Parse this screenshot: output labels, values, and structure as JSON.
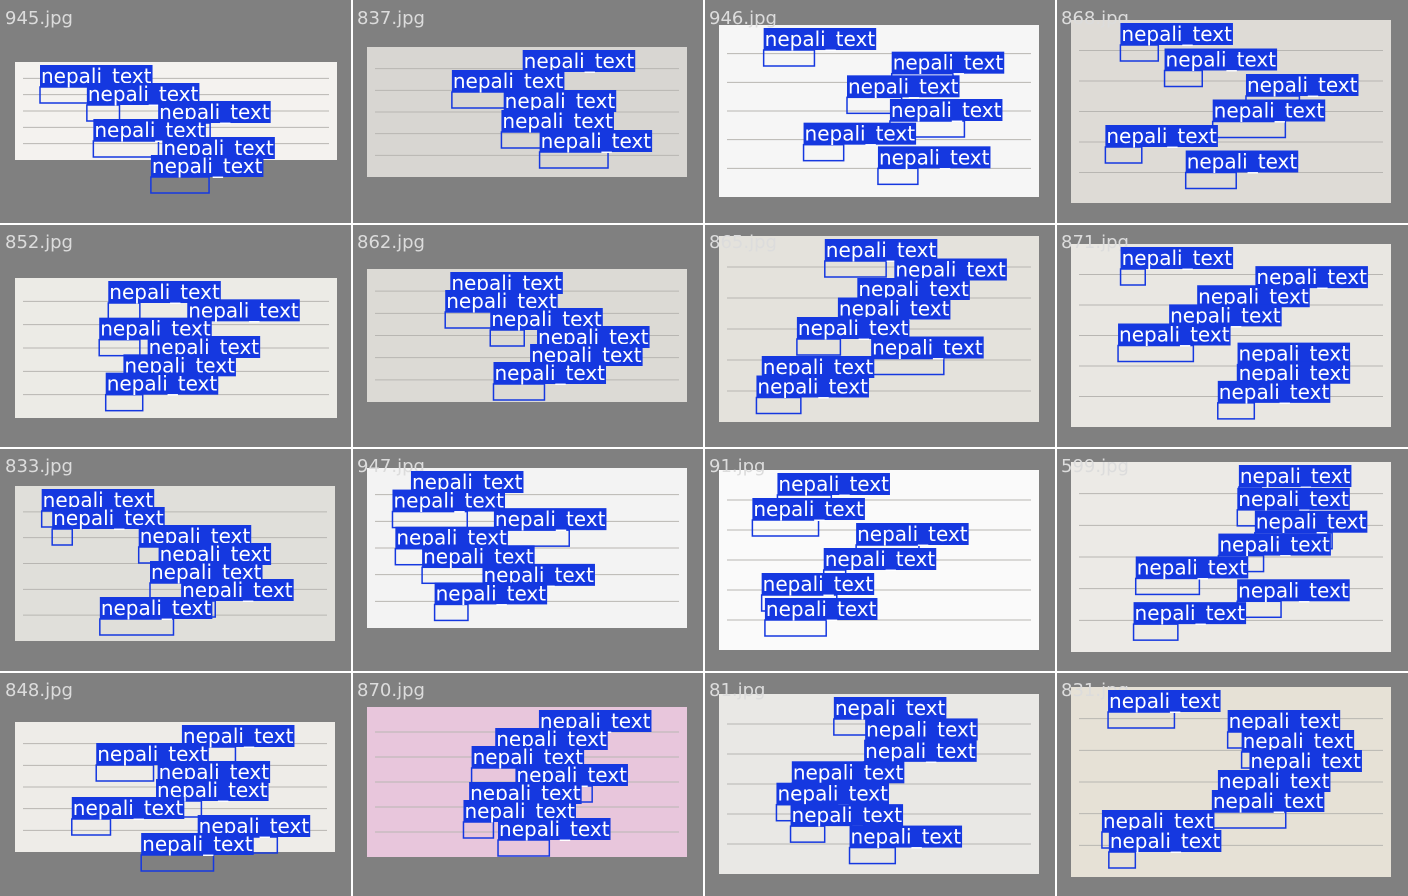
{
  "tiles": [
    {
      "filename": "945.jpg",
      "labels": [
        "nepali_text",
        "nepali_text",
        "nepali_text",
        "nepali_text",
        "nepali_text",
        "nepali_text"
      ]
    },
    {
      "filename": "837.jpg",
      "labels": [
        "nepali_text",
        "nepali_text",
        "nepali_text",
        "nepali_text",
        "nepali_text"
      ]
    },
    {
      "filename": "946.jpg",
      "labels": [
        "nepali_text",
        "nepali_text",
        "nepali_text",
        "nepali_text",
        "nepali_text",
        "nepali_text"
      ]
    },
    {
      "filename": "868.jpg",
      "labels": [
        "nepali_text",
        "nepali_text",
        "nepali_text",
        "nepali_text",
        "nepali_text",
        "nepali_text"
      ]
    },
    {
      "filename": "852.jpg",
      "labels": [
        "nepali_text",
        "nepali_text",
        "nepali_text",
        "nepali_text",
        "nepali_text",
        "nepali_text"
      ]
    },
    {
      "filename": "862.jpg",
      "labels": [
        "nepali_text",
        "nepali_text",
        "nepali_text",
        "nepali_text",
        "nepali_text",
        "nepali_text"
      ]
    },
    {
      "filename": "865.jpg",
      "labels": [
        "nepali_text",
        "nepali_text",
        "nepali_text",
        "nepali_text",
        "nepali_text",
        "nepali_text",
        "nepali_text",
        "nepali_text"
      ]
    },
    {
      "filename": "871.jpg",
      "labels": [
        "nepali_text",
        "nepali_text",
        "nepali_text",
        "nepali_text",
        "nepali_text",
        "nepali_text",
        "nepali_text",
        "nepali_text"
      ]
    },
    {
      "filename": "833.jpg",
      "labels": [
        "nepali_text",
        "nepali_text",
        "nepali_text",
        "nepali_text",
        "nepali_text",
        "nepali_text",
        "nepali_text"
      ]
    },
    {
      "filename": "947.jpg",
      "labels": [
        "nepali_text",
        "nepali_text",
        "nepali_text",
        "nepali_text",
        "nepali_text",
        "nepali_text",
        "nepali_text"
      ]
    },
    {
      "filename": "91.jpg",
      "labels": [
        "nepali_text",
        "nepali_text",
        "nepali_text",
        "nepali_text",
        "nepali_text",
        "nepali_text"
      ]
    },
    {
      "filename": "599.jpg",
      "labels": [
        "nepali_text",
        "nepali_text",
        "nepali_text",
        "nepali_text",
        "nepali_text",
        "nepali_text",
        "nepali_text"
      ]
    },
    {
      "filename": "848.jpg",
      "labels": [
        "nepali_text",
        "nepali_text",
        "nepali_text",
        "nepali_text",
        "nepali_text",
        "nepali_text",
        "nepali_text"
      ]
    },
    {
      "filename": "870.jpg",
      "labels": [
        "nepali_text",
        "nepali_text",
        "nepali_text",
        "nepali_text",
        "nepali_text",
        "nepali_text",
        "nepali_text"
      ]
    },
    {
      "filename": "81.jpg",
      "labels": [
        "nepali_text",
        "nepali_text",
        "nepali_text",
        "nepali_text",
        "nepali_text",
        "nepali_text",
        "nepali_text"
      ]
    },
    {
      "filename": "831.jpg",
      "labels": [
        "nepali_text",
        "nepali_text",
        "nepali_text",
        "nepali_text",
        "nepali_text",
        "nepali_text",
        "nepali_text",
        "nepali_text"
      ]
    }
  ]
}
